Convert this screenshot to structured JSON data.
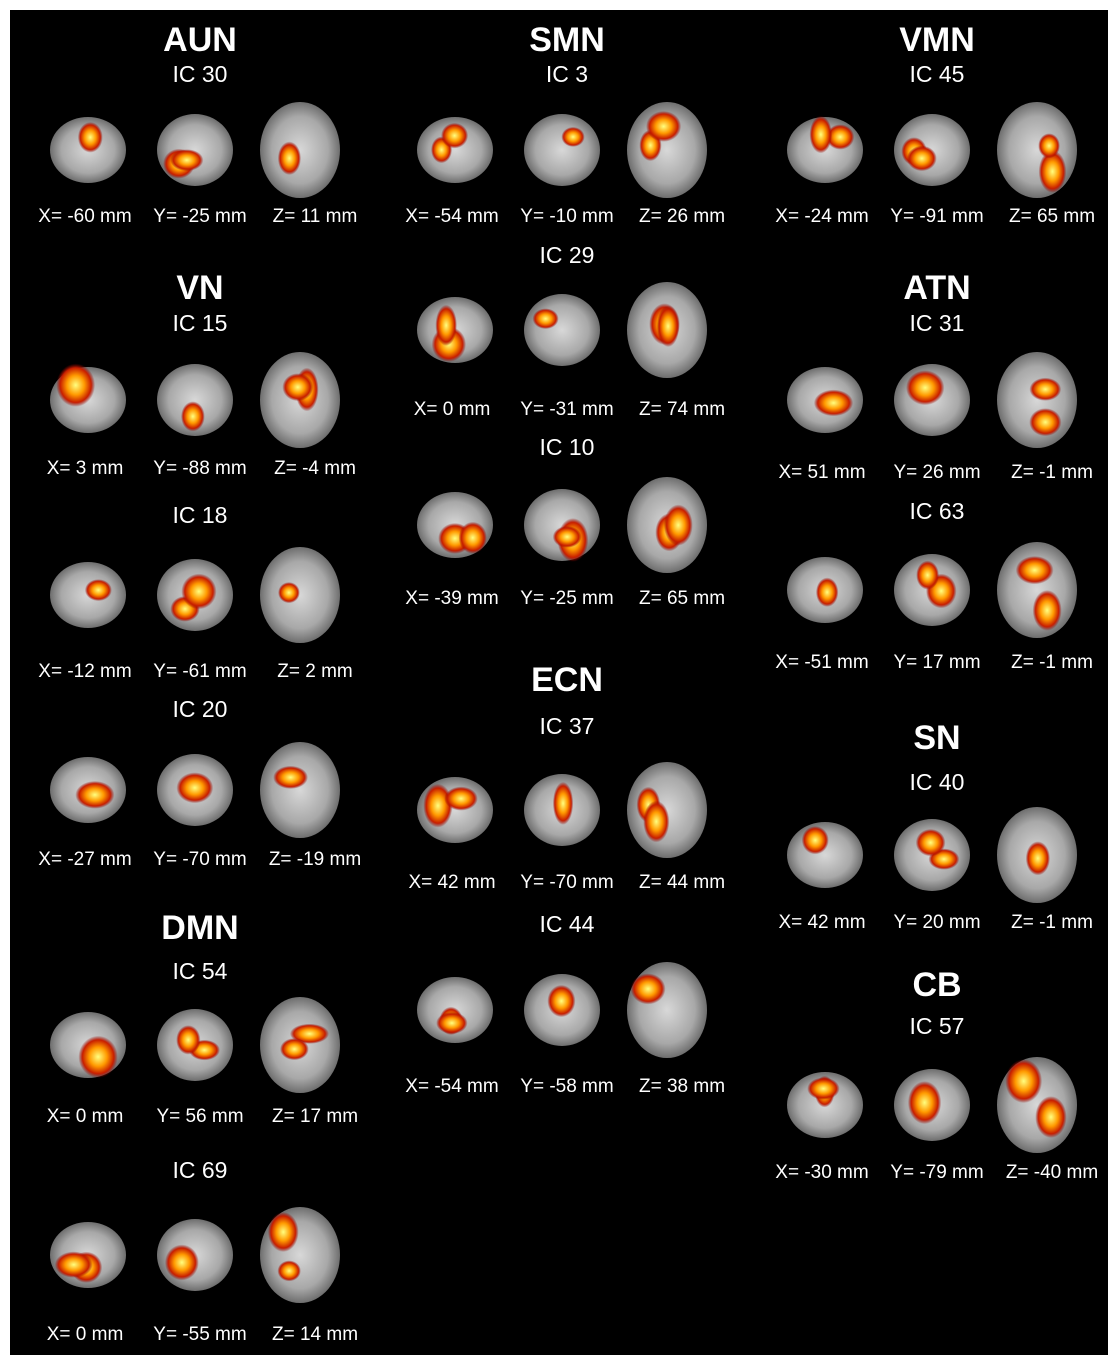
{
  "columns": [
    [
      {
        "network": "AUN",
        "components": [
          {
            "ic": "IC 30",
            "coords": [
              "X= -60 mm",
              "Y= -25 mm",
              "Z= 11 mm"
            ]
          }
        ]
      },
      {
        "network": "VN",
        "components": [
          {
            "ic": "IC 15",
            "coords": [
              "X= 3 mm",
              "Y= -88 mm",
              "Z= -4 mm"
            ]
          },
          {
            "ic": "IC 18",
            "coords": [
              "X= -12 mm",
              "Y= -61 mm",
              "Z= 2 mm"
            ]
          },
          {
            "ic": "IC 20",
            "coords": [
              "X= -27 mm",
              "Y= -70 mm",
              "Z= -19 mm"
            ]
          }
        ]
      },
      {
        "network": "DMN",
        "components": [
          {
            "ic": "IC 54",
            "coords": [
              "X= 0 mm",
              "Y= 56 mm",
              "Z= 17 mm"
            ]
          },
          {
            "ic": "IC 69",
            "coords": [
              "X= 0 mm",
              "Y= -55 mm",
              "Z= 14 mm"
            ]
          }
        ]
      }
    ],
    [
      {
        "network": "SMN",
        "components": [
          {
            "ic": "IC 3",
            "coords": [
              "X= -54 mm",
              "Y= -10 mm",
              "Z= 26 mm"
            ]
          },
          {
            "ic": "IC 29",
            "coords": [
              "X= 0 mm",
              "Y= -31 mm",
              "Z= 74 mm"
            ]
          },
          {
            "ic": "IC 10",
            "coords": [
              "X= -39 mm",
              "Y= -25 mm",
              "Z= 65 mm"
            ]
          }
        ]
      },
      {
        "network": "ECN",
        "components": [
          {
            "ic": "IC 37",
            "coords": [
              "X= 42 mm",
              "Y= -70 mm",
              "Z= 44 mm"
            ]
          },
          {
            "ic": "IC 44",
            "coords": [
              "X= -54 mm",
              "Y= -58 mm",
              "Z= 38 mm"
            ]
          }
        ]
      }
    ],
    [
      {
        "network": "VMN",
        "components": [
          {
            "ic": "IC 45",
            "coords": [
              "X= -24 mm",
              "Y= -91 mm",
              "Z= 65 mm"
            ]
          }
        ]
      },
      {
        "network": "ATN",
        "components": [
          {
            "ic": "IC 31",
            "coords": [
              "X= 51 mm",
              "Y= 26 mm",
              "Z= -1 mm"
            ]
          },
          {
            "ic": "IC 63",
            "coords": [
              "X= -51 mm",
              "Y= 17 mm",
              "Z= -1 mm"
            ]
          }
        ]
      },
      {
        "network": "SN",
        "components": [
          {
            "ic": "IC 40",
            "coords": [
              "X= 42 mm",
              "Y= 20 mm",
              "Z= -1 mm"
            ]
          }
        ]
      },
      {
        "network": "CB",
        "components": [
          {
            "ic": "IC 57",
            "coords": [
              "X= -30 mm",
              "Y= -79 mm",
              "Z= -40 mm"
            ]
          }
        ]
      }
    ]
  ]
}
